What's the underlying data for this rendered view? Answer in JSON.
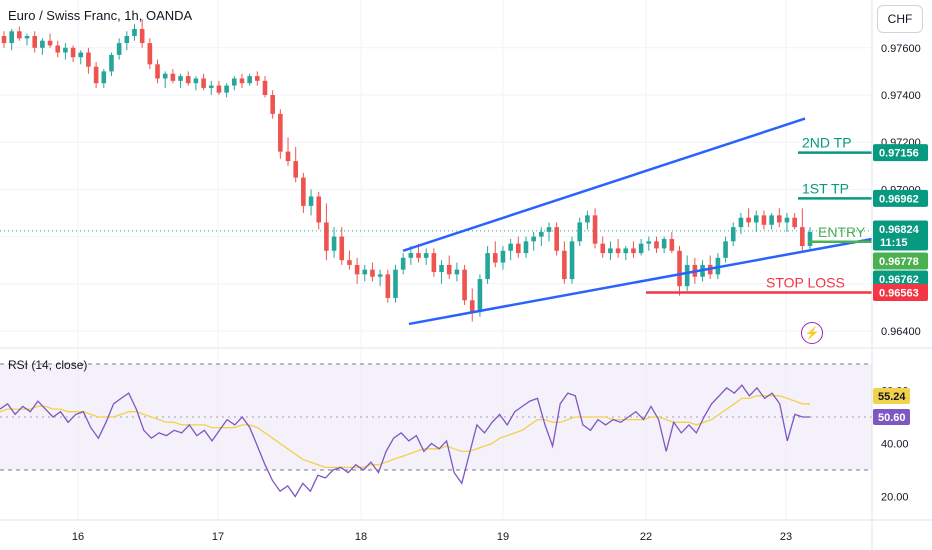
{
  "header": {
    "title": "Euro / Swiss Franc, 1h, OANDA",
    "currency": "CHF"
  },
  "rsi_panel": {
    "title": "RSI (14, close)",
    "value_rsi": "50.60",
    "value_ma": "55.24"
  },
  "colors": {
    "up": "#26a69a",
    "down": "#ef5350",
    "trendline": "#2962ff",
    "tp": "#089981",
    "entry": "#4caf50",
    "stop": "#f23645",
    "rsi_line": "#7e57c2",
    "rsi_ma": "#f2d14b",
    "rsi_band": "#ede7f6",
    "lightning": "#9c27b0"
  },
  "icons": {
    "lightning": "lightning-icon"
  },
  "chart_data": [
    {
      "type": "candlestick",
      "title": "Euro / Swiss Franc, 1h, OANDA",
      "ylim": [
        0.9628,
        0.9782
      ],
      "y_ticks": [
        "0.97600",
        "0.97400",
        "0.97200",
        "0.97000",
        "0.96800",
        "0.96600",
        "0.96400"
      ],
      "x_ticks": [
        "16",
        "17",
        "18",
        "19",
        "22",
        "23"
      ],
      "levels": [
        {
          "label": "2ND TP",
          "value": "0.97156",
          "price": 0.97156,
          "color": "#089981"
        },
        {
          "label": "1ST TP",
          "value": "0.96962",
          "price": 0.96962,
          "color": "#089981"
        },
        {
          "label": "ENTRY",
          "value": "0.96778",
          "price": 0.96778,
          "color": "#4caf50"
        },
        {
          "label": "STOP LOSS",
          "value": "0.96563",
          "price": 0.96563,
          "color": "#f23645"
        }
      ],
      "price_badges": [
        {
          "value": "0.96824",
          "sub": "11:15",
          "price": 0.96824,
          "color": "#089981"
        },
        {
          "value": "0.96762",
          "price": 0.96762,
          "color": "#089981"
        }
      ],
      "trendlines": [
        {
          "name": "upper",
          "from": [
            0,
            0.9674
          ],
          "to": [
            1,
            0.973
          ]
        },
        {
          "name": "lower",
          "from": [
            0,
            0.9643
          ],
          "to": [
            1,
            0.9678
          ]
        }
      ],
      "candles": [
        [
          0.9765,
          0.9767,
          0.976,
          0.9762
        ],
        [
          0.9762,
          0.9768,
          0.9759,
          0.9767
        ],
        [
          0.9767,
          0.9769,
          0.9763,
          0.9764
        ],
        [
          0.9764,
          0.9766,
          0.9761,
          0.9765
        ],
        [
          0.9765,
          0.9767,
          0.9758,
          0.976
        ],
        [
          0.976,
          0.9764,
          0.9757,
          0.9763
        ],
        [
          0.9763,
          0.9766,
          0.976,
          0.9761
        ],
        [
          0.9761,
          0.9763,
          0.9756,
          0.9758
        ],
        [
          0.9758,
          0.9762,
          0.9755,
          0.976
        ],
        [
          0.976,
          0.9761,
          0.9754,
          0.9756
        ],
        [
          0.9756,
          0.9759,
          0.9753,
          0.9758
        ],
        [
          0.9758,
          0.976,
          0.9749,
          0.9752
        ],
        [
          0.9752,
          0.9754,
          0.9743,
          0.9745
        ],
        [
          0.9745,
          0.9751,
          0.9743,
          0.975
        ],
        [
          0.975,
          0.9758,
          0.9748,
          0.9757
        ],
        [
          0.9757,
          0.9764,
          0.9755,
          0.9762
        ],
        [
          0.9762,
          0.9767,
          0.9759,
          0.9765
        ],
        [
          0.9765,
          0.977,
          0.9763,
          0.9768
        ],
        [
          0.9768,
          0.9772,
          0.976,
          0.9762
        ],
        [
          0.9762,
          0.9764,
          0.9751,
          0.9753
        ],
        [
          0.9753,
          0.9755,
          0.9745,
          0.9747
        ],
        [
          0.9747,
          0.975,
          0.9743,
          0.9749
        ],
        [
          0.9749,
          0.9751,
          0.9745,
          0.9746
        ],
        [
          0.9746,
          0.9749,
          0.9743,
          0.9748
        ],
        [
          0.9748,
          0.975,
          0.9744,
          0.9745
        ],
        [
          0.9745,
          0.9748,
          0.9742,
          0.9747
        ],
        [
          0.9747,
          0.9749,
          0.9742,
          0.9743
        ],
        [
          0.9743,
          0.9746,
          0.974,
          0.9744
        ],
        [
          0.9744,
          0.9746,
          0.974,
          0.9741
        ],
        [
          0.9741,
          0.9745,
          0.9739,
          0.9744
        ],
        [
          0.9744,
          0.9748,
          0.9742,
          0.9747
        ],
        [
          0.9747,
          0.9749,
          0.9743,
          0.9745
        ],
        [
          0.9745,
          0.9749,
          0.9744,
          0.9748
        ],
        [
          0.9748,
          0.975,
          0.9744,
          0.9746
        ],
        [
          0.9746,
          0.9748,
          0.9739,
          0.974
        ],
        [
          0.974,
          0.9742,
          0.973,
          0.9732
        ],
        [
          0.9732,
          0.9734,
          0.9713,
          0.9716
        ],
        [
          0.9716,
          0.9722,
          0.971,
          0.9712
        ],
        [
          0.9712,
          0.9718,
          0.9703,
          0.9705
        ],
        [
          0.9705,
          0.9707,
          0.969,
          0.9693
        ],
        [
          0.9693,
          0.97,
          0.9689,
          0.9697
        ],
        [
          0.9697,
          0.9699,
          0.9683,
          0.9686
        ],
        [
          0.9686,
          0.9694,
          0.967,
          0.9674
        ],
        [
          0.9674,
          0.9684,
          0.9671,
          0.968
        ],
        [
          0.968,
          0.9684,
          0.9668,
          0.967
        ],
        [
          0.967,
          0.9674,
          0.9666,
          0.9668
        ],
        [
          0.9668,
          0.9671,
          0.966,
          0.9664
        ],
        [
          0.9664,
          0.9668,
          0.9661,
          0.9666
        ],
        [
          0.9666,
          0.9669,
          0.9661,
          0.9663
        ],
        [
          0.9663,
          0.9666,
          0.9659,
          0.9664
        ],
        [
          0.9664,
          0.9666,
          0.9652,
          0.9654
        ],
        [
          0.9654,
          0.9668,
          0.9652,
          0.9666
        ],
        [
          0.9666,
          0.9673,
          0.9664,
          0.9671
        ],
        [
          0.9671,
          0.9676,
          0.9668,
          0.9673
        ],
        [
          0.9673,
          0.9677,
          0.9669,
          0.9671
        ],
        [
          0.9671,
          0.9675,
          0.9668,
          0.9673
        ],
        [
          0.9673,
          0.9675,
          0.9663,
          0.9665
        ],
        [
          0.9665,
          0.967,
          0.966,
          0.9668
        ],
        [
          0.9668,
          0.9672,
          0.9662,
          0.9664
        ],
        [
          0.9664,
          0.9669,
          0.9661,
          0.9666
        ],
        [
          0.9666,
          0.9668,
          0.9651,
          0.9653
        ],
        [
          0.9653,
          0.9658,
          0.9644,
          0.9648
        ],
        [
          0.9648,
          0.9664,
          0.9646,
          0.9662
        ],
        [
          0.9662,
          0.9676,
          0.966,
          0.9673
        ],
        [
          0.9673,
          0.9678,
          0.9667,
          0.9669
        ],
        [
          0.9669,
          0.9676,
          0.9666,
          0.9674
        ],
        [
          0.9674,
          0.9679,
          0.967,
          0.9677
        ],
        [
          0.9677,
          0.968,
          0.9671,
          0.9673
        ],
        [
          0.9673,
          0.968,
          0.9671,
          0.9678
        ],
        [
          0.9678,
          0.9682,
          0.9674,
          0.968
        ],
        [
          0.968,
          0.9684,
          0.9676,
          0.9682
        ],
        [
          0.9682,
          0.9686,
          0.9678,
          0.9684
        ],
        [
          0.9684,
          0.9686,
          0.9672,
          0.9674
        ],
        [
          0.9674,
          0.9678,
          0.966,
          0.9662
        ],
        [
          0.9662,
          0.968,
          0.966,
          0.9678
        ],
        [
          0.9678,
          0.9688,
          0.9676,
          0.9686
        ],
        [
          0.9686,
          0.9691,
          0.9683,
          0.9689
        ],
        [
          0.9689,
          0.9692,
          0.9675,
          0.9677
        ],
        [
          0.9677,
          0.968,
          0.9671,
          0.9673
        ],
        [
          0.9673,
          0.9678,
          0.967,
          0.9675
        ],
        [
          0.9675,
          0.9679,
          0.9671,
          0.9673
        ],
        [
          0.9673,
          0.9676,
          0.967,
          0.9675
        ],
        [
          0.9675,
          0.9678,
          0.9671,
          0.9673
        ],
        [
          0.9673,
          0.9679,
          0.9672,
          0.9677
        ],
        [
          0.9677,
          0.968,
          0.9674,
          0.9678
        ],
        [
          0.9678,
          0.968,
          0.9673,
          0.9675
        ],
        [
          0.9675,
          0.968,
          0.9673,
          0.9679
        ],
        [
          0.9679,
          0.9682,
          0.9673,
          0.9674
        ],
        [
          0.9674,
          0.9676,
          0.9655,
          0.9659
        ],
        [
          0.9659,
          0.9672,
          0.9657,
          0.9668
        ],
        [
          0.9668,
          0.9671,
          0.966,
          0.9663
        ],
        [
          0.9663,
          0.967,
          0.9661,
          0.9668
        ],
        [
          0.9668,
          0.9672,
          0.9662,
          0.9664
        ],
        [
          0.9664,
          0.9673,
          0.9662,
          0.9671
        ],
        [
          0.9671,
          0.968,
          0.9669,
          0.9678
        ],
        [
          0.9678,
          0.9686,
          0.9676,
          0.9684
        ],
        [
          0.9684,
          0.969,
          0.9681,
          0.9688
        ],
        [
          0.9688,
          0.9692,
          0.9684,
          0.9686
        ],
        [
          0.9686,
          0.9691,
          0.9682,
          0.9689
        ],
        [
          0.9689,
          0.9691,
          0.9683,
          0.9685
        ],
        [
          0.9685,
          0.969,
          0.9683,
          0.9689
        ],
        [
          0.9689,
          0.9692,
          0.9684,
          0.9686
        ],
        [
          0.9686,
          0.969,
          0.9682,
          0.9688
        ],
        [
          0.9688,
          0.969,
          0.9683,
          0.9684
        ],
        [
          0.9684,
          0.9692,
          0.9674,
          0.9676
        ],
        [
          0.9676,
          0.9684,
          0.9674,
          0.9682
        ]
      ]
    },
    {
      "type": "line",
      "title": "RSI (14, close)",
      "ylim": [
        15,
        70
      ],
      "y_ticks": [
        "60.00",
        "40.00",
        "20.00"
      ],
      "bands": [
        30,
        70
      ],
      "middle": 50,
      "series": [
        {
          "values": [
            53,
            55,
            51,
            54,
            52,
            56,
            53,
            50,
            52,
            48,
            51,
            52,
            46,
            42,
            48,
            55,
            57,
            59,
            53,
            45,
            42,
            44,
            43,
            45,
            44,
            47,
            43,
            45,
            41,
            45,
            49,
            47,
            50,
            46,
            39,
            32,
            26,
            22,
            24,
            20,
            25,
            22,
            28,
            27,
            30,
            31,
            29,
            32,
            30,
            33,
            29,
            37,
            42,
            44,
            41,
            43,
            37,
            40,
            38,
            41,
            29,
            25,
            36,
            47,
            44,
            48,
            51,
            47,
            52,
            54,
            56,
            57,
            47,
            39,
            55,
            59,
            58,
            47,
            45,
            49,
            47,
            49,
            48,
            50,
            52,
            49,
            54,
            49,
            37,
            48,
            44,
            47,
            44,
            50,
            55,
            58,
            61,
            59,
            62,
            58,
            61,
            57,
            59,
            55,
            41,
            51,
            50,
            50
          ]
        },
        {
          "values": [
            52,
            53,
            53,
            53,
            53,
            54,
            54,
            53,
            53,
            52,
            52,
            52,
            51,
            50,
            50,
            50,
            51,
            52,
            52,
            51,
            50,
            49,
            48,
            48,
            47,
            47,
            47,
            47,
            46,
            46,
            46,
            46,
            47,
            47,
            46,
            44,
            42,
            40,
            38,
            36,
            34,
            33,
            32,
            31,
            31,
            31,
            31,
            31,
            31,
            32,
            32,
            33,
            34,
            35,
            36,
            37,
            38,
            38,
            38,
            39,
            38,
            37,
            37,
            38,
            39,
            40,
            42,
            43,
            44,
            45,
            47,
            49,
            49,
            48,
            48,
            49,
            50,
            50,
            50,
            50,
            50,
            49,
            49,
            49,
            49,
            49,
            50,
            50,
            49,
            48,
            48,
            48,
            47,
            48,
            49,
            51,
            53,
            55,
            57,
            57,
            58,
            58,
            58,
            58,
            57,
            56,
            55,
            55
          ]
        }
      ],
      "rsi_value": "50.60",
      "ma_value": "55.24"
    }
  ]
}
